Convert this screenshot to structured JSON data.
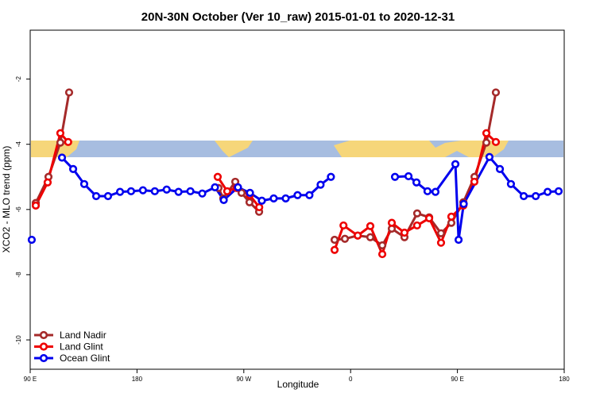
{
  "chart_data": {
    "type": "line",
    "title": "20N-30N October (Ver 10_raw)   2015-01-01 to 2020-12-31",
    "x_label": "Longitude",
    "y_label": "XCO2 - MLO trend (ppm)",
    "xlim": [
      90,
      540
    ],
    "ylim": [
      -10.9,
      -0.5
    ],
    "xticks": [
      {
        "value": 90,
        "label": "90 E"
      },
      {
        "value": 180,
        "label": "180"
      },
      {
        "value": 270,
        "label": "90 W"
      },
      {
        "value": 360,
        "label": "0"
      },
      {
        "value": 450,
        "label": "90 E"
      },
      {
        "value": 540,
        "label": "180"
      }
    ],
    "yticks": [
      -2,
      -4,
      -6,
      -8,
      -10
    ],
    "legend": "bottomleft",
    "series": [
      {
        "name": "Land Nadir",
        "color": "#a52a2a",
        "x": [
          94.7,
          105.4,
          115.4,
          122.8,
          185,
          248.7,
          252.7,
          262.8,
          268.1,
          274.8,
          282.9,
          315,
          346.5,
          355.2,
          366,
          376.6,
          386.7,
          394.7,
          405.4,
          416.1,
          426.2,
          436.2,
          444.9,
          455,
          464.4,
          474.4,
          482.4
        ],
        "values": [
          -5.8,
          -5.0,
          -3.95,
          -2.41,
          null,
          -5.34,
          -5.66,
          -5.15,
          -5.49,
          -5.78,
          -6.07,
          null,
          -6.93,
          -6.9,
          -6.8,
          -6.85,
          -7.1,
          -6.59,
          -6.85,
          -6.12,
          -6.24,
          -6.73,
          -6.41,
          -5.78,
          -5.0,
          -3.95,
          -2.41
        ]
      },
      {
        "name": "Land Glint",
        "color": "#ee0000",
        "x": [
          94.7,
          104.7,
          115.4,
          122,
          185,
          248,
          256,
          264,
          275,
          283,
          315,
          346.5,
          354,
          366,
          376.6,
          386.7,
          394.7,
          405.4,
          416,
          426.2,
          436.2,
          444.9,
          455,
          464.3,
          474.4,
          482.4
        ],
        "values": [
          -5.88,
          -5.17,
          -3.66,
          -3.93,
          null,
          -5.0,
          -5.44,
          -5.34,
          -5.56,
          -5.93,
          null,
          -7.24,
          -6.49,
          -6.8,
          -6.51,
          -7.37,
          -6.41,
          -6.71,
          -6.49,
          -6.27,
          -7.02,
          -6.22,
          -5.88,
          -5.15,
          -3.66,
          -3.93
        ]
      },
      {
        "name": "Ocean Glint",
        "color": "#0000ee",
        "x": [
          91.3,
          100,
          116.8,
          126.2,
          135.5,
          145.6,
          155.6,
          165.7,
          175,
          185,
          195,
          205,
          215,
          225,
          235,
          245.7,
          253.1,
          265.1,
          275.2,
          285.2,
          295.2,
          305.3,
          315.3,
          325.3,
          334.7,
          343.4,
          370,
          397.4,
          408.8,
          415.5,
          424.8,
          431.5,
          448.3,
          451,
          455.3,
          477,
          485.8,
          495.1,
          505.9,
          516,
          526,
          535.3
        ],
        "values": [
          -6.93,
          null,
          -4.41,
          -4.76,
          -5.22,
          -5.59,
          -5.59,
          -5.46,
          -5.44,
          -5.41,
          -5.44,
          -5.39,
          -5.46,
          -5.44,
          -5.51,
          -5.32,
          -5.71,
          -5.32,
          -5.49,
          -5.73,
          -5.66,
          -5.66,
          -5.56,
          -5.56,
          -5.24,
          -5.0,
          null,
          -5.0,
          -4.98,
          -5.17,
          -5.44,
          -5.46,
          -4.61,
          -6.93,
          -5.83,
          -4.39,
          -4.76,
          -5.22,
          -5.59,
          -5.59,
          -5.46,
          -5.44
        ]
      }
    ]
  }
}
